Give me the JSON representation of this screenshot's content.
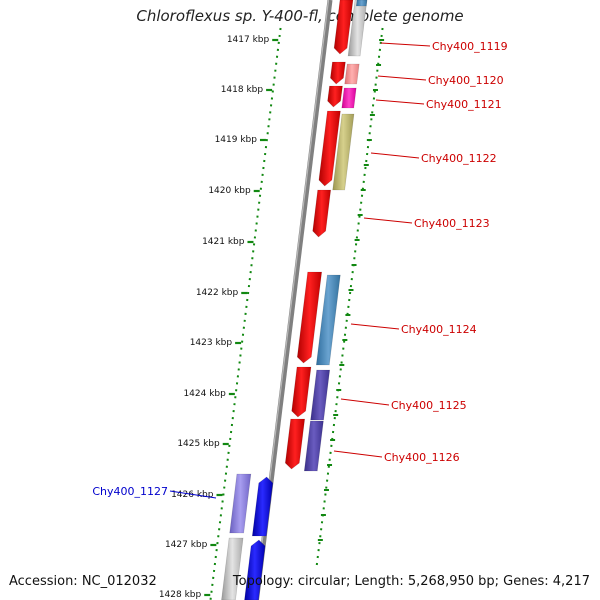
{
  "title": "Chloroflexus sp. Y-400-fl, complete genome",
  "accession_text": "Accession: NC_012032",
  "summary_text": "Topology: circular; Length: 5,268,950 bp; Genes: 4,217",
  "kbp_ticks": [
    "1417 kbp",
    "1418 kbp",
    "1419 kbp",
    "1420 kbp",
    "1421 kbp",
    "1422 kbp",
    "1423 kbp",
    "1424 kbp",
    "1425 kbp",
    "1426 kbp",
    "1427 kbp",
    "1428 kbp"
  ],
  "gene_labels": [
    {
      "text": "Chy400_1119",
      "color": "#cc0000"
    },
    {
      "text": "Chy400_1120",
      "color": "#cc0000"
    },
    {
      "text": "Chy400_1121",
      "color": "#cc0000"
    },
    {
      "text": "Chy400_1122",
      "color": "#cc0000"
    },
    {
      "text": "Chy400_1123",
      "color": "#cc0000"
    },
    {
      "text": "Chy400_1124",
      "color": "#cc0000"
    },
    {
      "text": "Chy400_1125",
      "color": "#cc0000"
    },
    {
      "text": "Chy400_1126",
      "color": "#cc0000"
    },
    {
      "text": "Chy400_1127",
      "color": "#0000cc"
    }
  ],
  "colors": {
    "backbone": "#808080",
    "tick_green": "#118811",
    "forward_red": "#ee0000",
    "reverse_blue": "#0000ee"
  }
}
